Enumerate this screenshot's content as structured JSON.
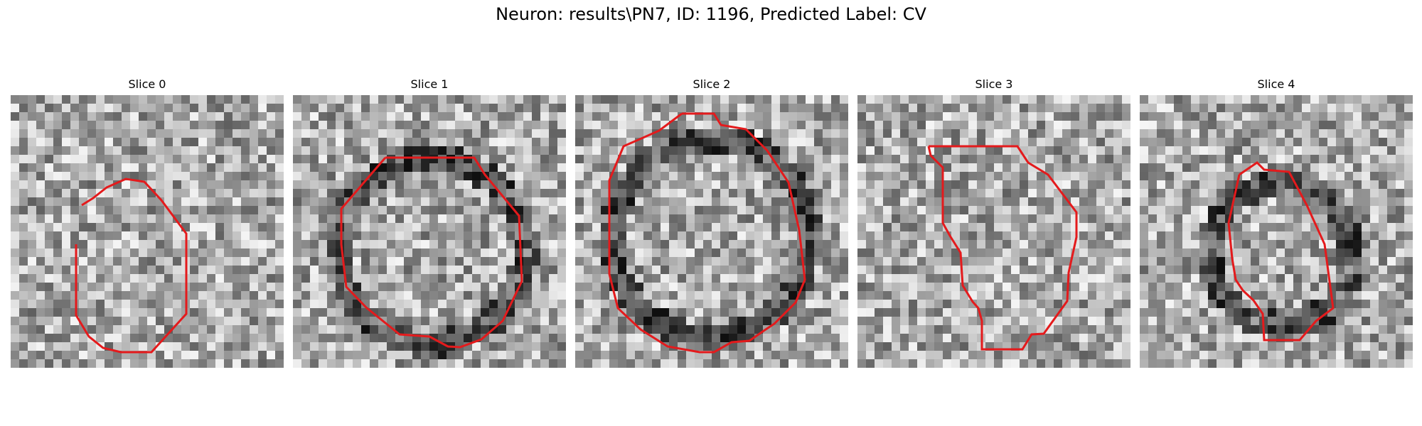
{
  "figure": {
    "title": "Neuron: results\\PN7, ID: 1196, Predicted Label: CV"
  },
  "panels": [
    {
      "title": "Slice 0",
      "contour_color": "#e41a1c"
    },
    {
      "title": "Slice 1",
      "contour_color": "#e41a1c"
    },
    {
      "title": "Slice 2",
      "contour_color": "#e41a1c"
    },
    {
      "title": "Slice 3",
      "contour_color": "#e41a1c"
    },
    {
      "title": "Slice 4",
      "contour_color": "#e41a1c"
    }
  ]
}
